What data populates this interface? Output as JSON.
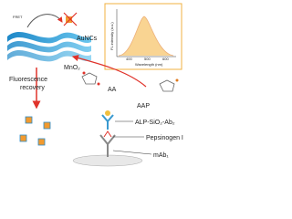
{
  "labels": {
    "fret": "FRET",
    "aunc": "AuNCs",
    "mno2": "MnO₂",
    "recovery": [
      "Fluorescence",
      "recovery"
    ],
    "aa": "AA",
    "aap": "AAP",
    "alp": "ALP-SiO₂-Ab₂",
    "pepsinogen": "Pepsinogen I",
    "mab": "mAb₁"
  },
  "inset": {
    "x_label": "Wavelength (nm)",
    "y_label": "FL intensity (a.u.)",
    "x_ticks": [
      "400",
      "500",
      "600"
    ]
  }
}
